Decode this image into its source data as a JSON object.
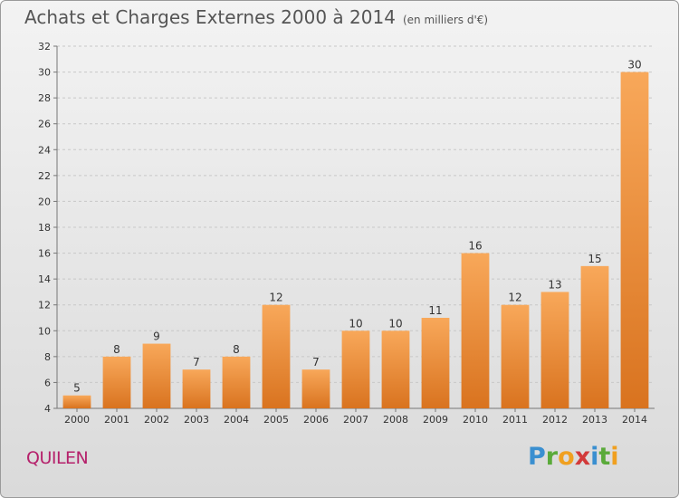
{
  "header": {
    "title": "Achats et Charges Externes 2000 à 2014",
    "subtitle": "(en milliers d'€)"
  },
  "footer": {
    "town": "QUILEN",
    "logo": "Proxiti"
  },
  "colors": {
    "bar_light": "#f8a85a",
    "bar_dark": "#d9731f",
    "town": "#b5216b"
  },
  "chart_data": {
    "type": "bar",
    "title": "Achats et Charges Externes 2000 à 2014",
    "subtitle": "(en milliers d'€)",
    "categories": [
      "2000",
      "2001",
      "2002",
      "2003",
      "2004",
      "2005",
      "2006",
      "2007",
      "2008",
      "2009",
      "2010",
      "2011",
      "2012",
      "2013",
      "2014"
    ],
    "values": [
      5,
      8,
      9,
      7,
      8,
      12,
      7,
      10,
      10,
      11,
      16,
      12,
      13,
      15,
      30
    ],
    "ylim": [
      4,
      32
    ],
    "yticks": [
      4,
      6,
      8,
      10,
      12,
      14,
      16,
      18,
      20,
      22,
      24,
      26,
      28,
      30,
      32
    ],
    "grid": "horizontal-dashed",
    "xlabel": "",
    "ylabel": ""
  }
}
